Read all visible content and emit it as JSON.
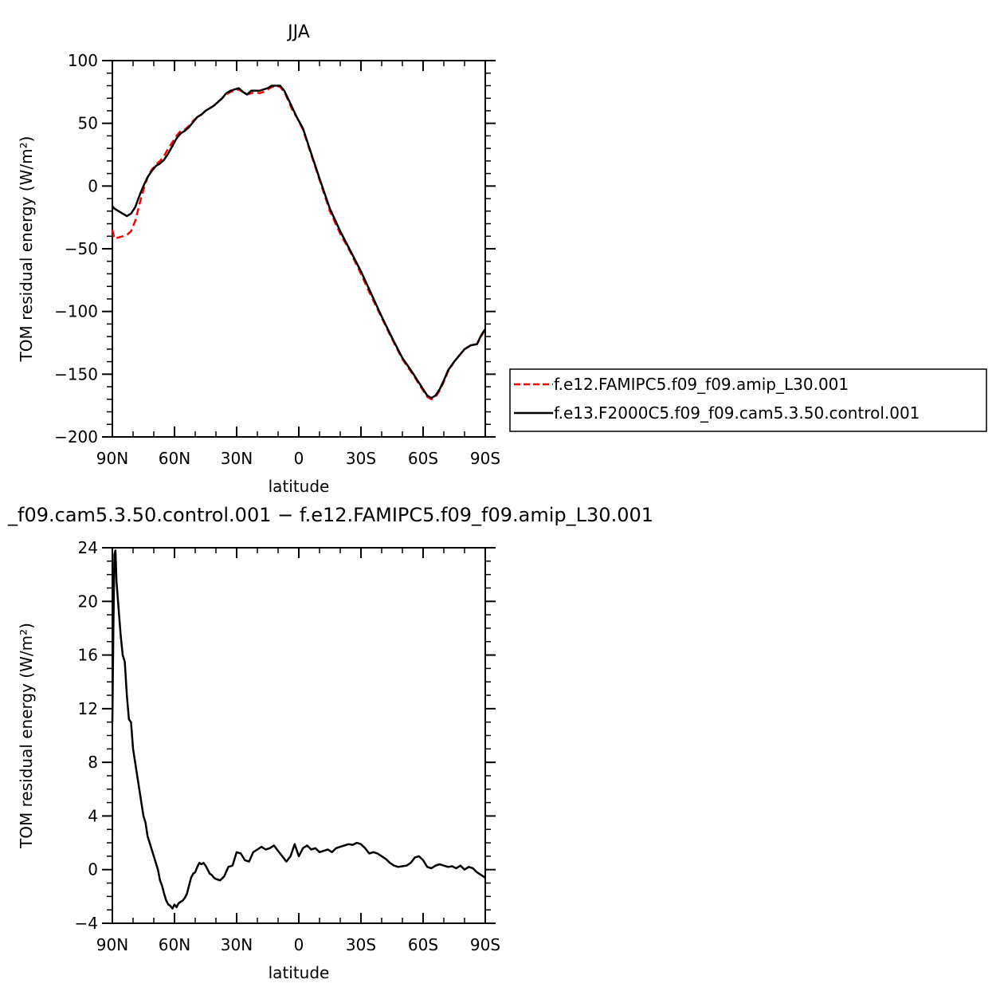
{
  "chart_data": [
    {
      "type": "line",
      "title": "JJA",
      "xlabel": "latitude",
      "ylabel": "TOM residual energy (W/m²)",
      "xlim": [
        90,
        -90
      ],
      "ylim": [
        -200,
        100
      ],
      "xticks": [
        90,
        60,
        30,
        0,
        -30,
        -60,
        -90
      ],
      "xtick_labels": [
        "90N",
        "60N",
        "30N",
        "0",
        "30S",
        "60S",
        "90S"
      ],
      "yticks": [
        100,
        50,
        0,
        -50,
        -100,
        -150,
        -200
      ],
      "ytick_labels": [
        "100",
        "50",
        "0",
        "−50",
        "−100",
        "−150",
        "−200"
      ],
      "legend_position": "right-outside",
      "series": [
        {
          "name": "f.e12.FAMIPC5.f09_f09.amip_L30.001",
          "color": "#ff0000",
          "dash": "dashed",
          "x": [
            90,
            89,
            87,
            85,
            83,
            81,
            79,
            77,
            75,
            73,
            71,
            69,
            67,
            65,
            63,
            61,
            59,
            57,
            55,
            53,
            51,
            49,
            47,
            45,
            43,
            41,
            39,
            37,
            35,
            33,
            31,
            29,
            27,
            25,
            23,
            21,
            19,
            17,
            15,
            13,
            11,
            9,
            7,
            5,
            3,
            1,
            -2,
            -5,
            -10,
            -15,
            -20,
            -25,
            -30,
            -35,
            -40,
            -45,
            -50,
            -55,
            -60,
            -62,
            -64,
            -66,
            -68,
            -70,
            -72,
            -75,
            -78,
            -80,
            -83,
            -86,
            -88,
            -90
          ],
          "y": [
            -35,
            -42,
            -41,
            -40,
            -39,
            -36,
            -28,
            -15,
            -3,
            7,
            13,
            17,
            20,
            24,
            30,
            35,
            40,
            44,
            45,
            48,
            52,
            55,
            57,
            60,
            62,
            64,
            67,
            70,
            73,
            75,
            76,
            77,
            75,
            73,
            74,
            75,
            74,
            75,
            77,
            79,
            80,
            79,
            75,
            68,
            60,
            55,
            45,
            30,
            5,
            -20,
            -38,
            -53,
            -70,
            -88,
            -105,
            -122,
            -138,
            -150,
            -163,
            -168,
            -170,
            -168,
            -163,
            -156,
            -148,
            -140,
            -134,
            -130,
            -127,
            -126,
            -120,
            -114
          ]
        },
        {
          "name": "f.e13.F2000C5.f09_f09.cam5.3.50.control.001",
          "color": "#000000",
          "dash": "solid",
          "x": [
            90,
            89,
            87,
            85,
            83,
            81,
            79,
            77,
            75,
            73,
            71,
            69,
            67,
            65,
            63,
            61,
            59,
            57,
            55,
            53,
            51,
            49,
            47,
            45,
            43,
            41,
            39,
            37,
            35,
            33,
            31,
            29,
            27,
            25,
            23,
            21,
            19,
            17,
            15,
            13,
            11,
            9,
            7,
            5,
            3,
            1,
            -2,
            -5,
            -10,
            -15,
            -20,
            -25,
            -30,
            -35,
            -40,
            -45,
            -50,
            -55,
            -60,
            -62,
            -64,
            -66,
            -68,
            -70,
            -72,
            -75,
            -78,
            -80,
            -83,
            -86,
            -88,
            -90
          ],
          "y": [
            -16,
            -18,
            -20,
            -22,
            -24,
            -22,
            -17,
            -8,
            0,
            7,
            12,
            16,
            18,
            21,
            26,
            32,
            38,
            42,
            44,
            47,
            51,
            55,
            57,
            60,
            62,
            64,
            67,
            70,
            74,
            76,
            77,
            78,
            75,
            73,
            76,
            76,
            76,
            77,
            78,
            80,
            80,
            80,
            76,
            69,
            62,
            55,
            46,
            31,
            6,
            -18,
            -36,
            -52,
            -68,
            -86,
            -104,
            -121,
            -137,
            -149,
            -162,
            -167,
            -169,
            -167,
            -162,
            -155,
            -147,
            -140,
            -134,
            -130,
            -127,
            -126,
            -119,
            -114
          ]
        }
      ]
    },
    {
      "type": "line",
      "title": "_f09.cam5.3.50.control.001  −  f.e12.FAMIPC5.f09_f09.amip_L30.001",
      "xlabel": "latitude",
      "ylabel": "TOM residual energy (W/m²)",
      "xlim": [
        90,
        -90
      ],
      "ylim": [
        -4,
        24
      ],
      "xticks": [
        90,
        60,
        30,
        0,
        -30,
        -60,
        -90
      ],
      "xtick_labels": [
        "90N",
        "60N",
        "30N",
        "0",
        "30S",
        "60S",
        "90S"
      ],
      "yticks": [
        24,
        20,
        16,
        12,
        8,
        4,
        0,
        -4
      ],
      "ytick_labels": [
        "24",
        "20",
        "16",
        "12",
        "8",
        "4",
        "0",
        "−4"
      ],
      "series": [
        {
          "name": "",
          "color": "#000000",
          "dash": "solid",
          "x": [
            90,
            89.5,
            89,
            88.5,
            88,
            87,
            86,
            85,
            84,
            83,
            82,
            81,
            80,
            79,
            78,
            77,
            76,
            75,
            74,
            73,
            72,
            71,
            70,
            69,
            68,
            67,
            66,
            65,
            64,
            63,
            62,
            61,
            60,
            59,
            58,
            57,
            56,
            55,
            54,
            53,
            52,
            51,
            50,
            49,
            48,
            47,
            46,
            45,
            44,
            43,
            42,
            41,
            40,
            38,
            36,
            34,
            32,
            30,
            28,
            26,
            24,
            22,
            20,
            18,
            16,
            14,
            12,
            10,
            8,
            6,
            4,
            2,
            0,
            -2,
            -4,
            -6,
            -8,
            -10,
            -12,
            -14,
            -16,
            -18,
            -20,
            -22,
            -24,
            -26,
            -28,
            -30,
            -32,
            -34,
            -36,
            -38,
            -40,
            -42,
            -44,
            -46,
            -48,
            -50,
            -52,
            -54,
            -56,
            -58,
            -60,
            -62,
            -64,
            -66,
            -68,
            -70,
            -72,
            -74,
            -76,
            -78,
            -80,
            -82,
            -84,
            -86,
            -88,
            -90
          ],
          "y": [
            11,
            18,
            23.5,
            23.8,
            21.5,
            19.5,
            17.5,
            16,
            15.5,
            13,
            11.2,
            11,
            9,
            8,
            7,
            6,
            5,
            4,
            3.5,
            2.5,
            2,
            1.5,
            1,
            0.5,
            0,
            -0.8,
            -1.2,
            -1.8,
            -2.3,
            -2.6,
            -2.7,
            -2.9,
            -2.6,
            -2.8,
            -2.5,
            -2.4,
            -2.3,
            -2.1,
            -1.8,
            -1.2,
            -0.6,
            -0.3,
            -0.2,
            0.2,
            0.5,
            0.4,
            0.5,
            0.3,
            0,
            -0.3,
            -0.4,
            -0.6,
            -0.7,
            -0.8,
            -0.5,
            0.2,
            0.3,
            1.3,
            1.2,
            0.7,
            0.6,
            1.3,
            1.5,
            1.7,
            1.5,
            1.6,
            1.8,
            1.4,
            1.0,
            0.6,
            1.0,
            1.9,
            1.0,
            1.6,
            1.8,
            1.5,
            1.6,
            1.3,
            1.4,
            1.5,
            1.3,
            1.6,
            1.7,
            1.8,
            1.9,
            1.85,
            2.0,
            1.9,
            1.6,
            1.2,
            1.3,
            1.2,
            1.0,
            0.8,
            0.5,
            0.3,
            0.2,
            0.25,
            0.3,
            0.5,
            0.9,
            1.0,
            0.7,
            0.2,
            0.1,
            0.3,
            0.4,
            0.3,
            0.2,
            0.25,
            0.1,
            0.3,
            0.0,
            0.2,
            0.1,
            -0.2,
            -0.4,
            -0.6
          ]
        }
      ]
    }
  ]
}
